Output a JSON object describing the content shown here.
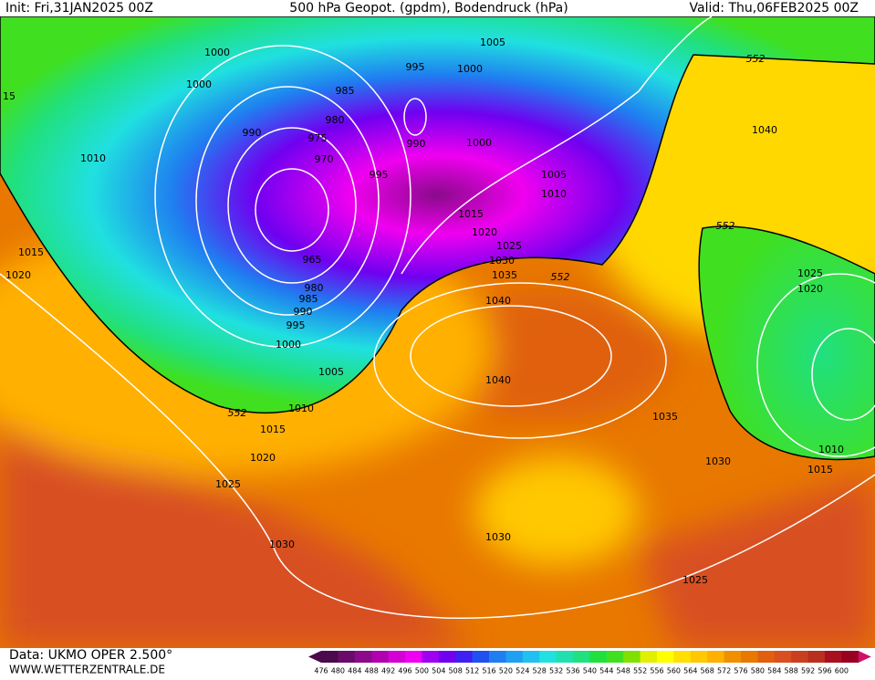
{
  "header": {
    "init": "Init: Fri,31JAN2025 00Z",
    "title": "500 hPa Geopot. (gpdm), Bodendruck (hPa)",
    "valid": "Valid: Thu,06FEB2025 00Z"
  },
  "isobar_labels": [
    "1000",
    "1000",
    "15",
    "1010",
    "1015",
    "1020",
    "990",
    "985",
    "980",
    "975",
    "970",
    "965",
    "980",
    "985",
    "990",
    "995",
    "1000",
    "1005",
    "1010",
    "1015",
    "1020",
    "1025",
    "1030",
    "995",
    "1005",
    "1000",
    "990",
    "995",
    "1000",
    "1005",
    "1010",
    "1015",
    "1020",
    "1025",
    "1030",
    "1035",
    "1040",
    "1040",
    "1035",
    "1030",
    "1030",
    "1025",
    "1040",
    "1025",
    "1020",
    "1010",
    "1015"
  ],
  "geopotential_labels": [
    "552",
    "552",
    "552",
    "552"
  ],
  "colorbar": {
    "ticks": [
      476,
      480,
      484,
      488,
      492,
      496,
      500,
      504,
      508,
      512,
      516,
      520,
      524,
      528,
      532,
      536,
      540,
      544,
      548,
      552,
      556,
      560,
      564,
      568,
      572,
      576,
      580,
      584,
      588,
      592,
      596,
      600
    ],
    "colors": [
      "#4b0a4b",
      "#6a0a6a",
      "#8a0a8a",
      "#b000b0",
      "#d400d4",
      "#f000f0",
      "#a000f0",
      "#7000f0",
      "#4020f0",
      "#2050f0",
      "#1f7ff0",
      "#1fa0f0",
      "#20c0f0",
      "#20e0e0",
      "#20e0b0",
      "#20e080",
      "#20e040",
      "#40e020",
      "#80e000",
      "#e0f000",
      "#ffff00",
      "#ffe000",
      "#ffc800",
      "#ffb000",
      "#f09000",
      "#e87800",
      "#e06010",
      "#d85020",
      "#c84020",
      "#b83020",
      "#a81020",
      "#980020"
    ]
  },
  "footer": {
    "data": "Data: UKMO OPER 2.500°",
    "site": "WWW.WETTERZENTRALE.DE"
  }
}
